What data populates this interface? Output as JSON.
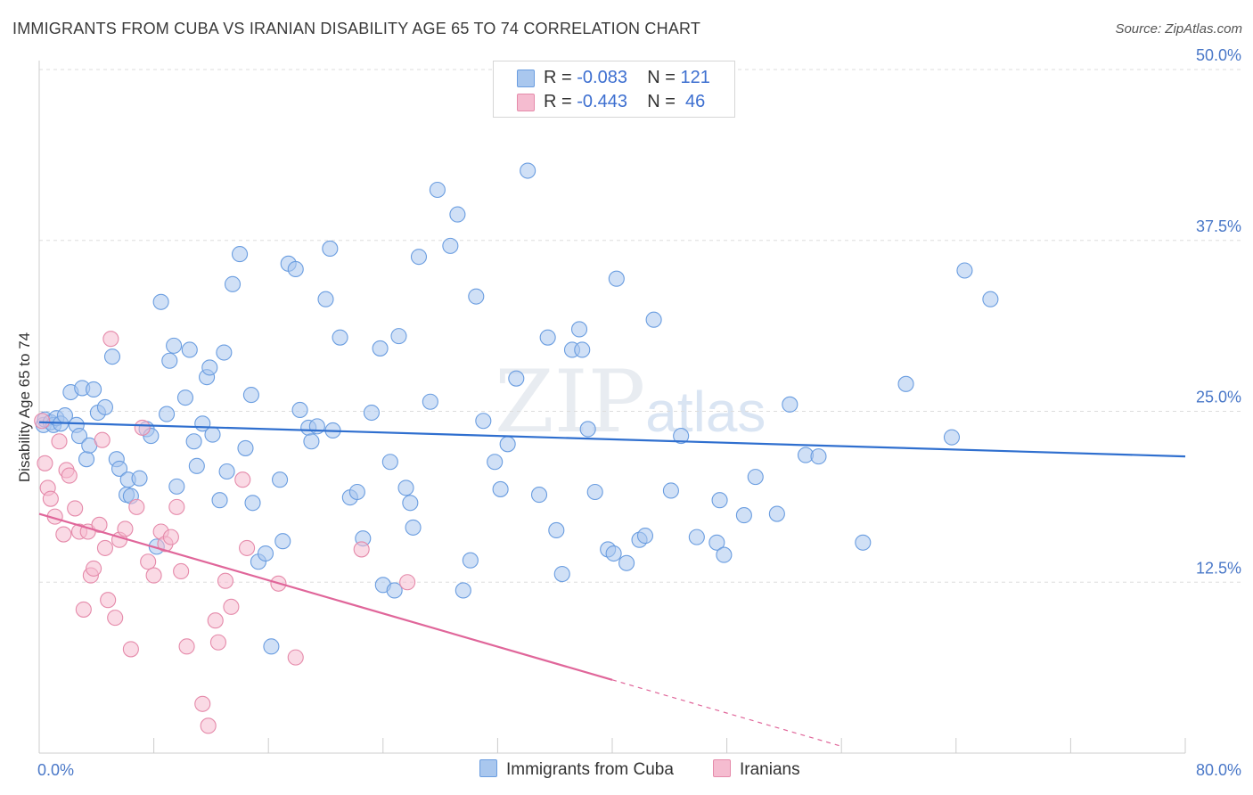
{
  "title": "IMMIGRANTS FROM CUBA VS IRANIAN DISABILITY AGE 65 TO 74 CORRELATION CHART",
  "source": "Source: ZipAtlas.com",
  "watermark": {
    "zip": "ZIP",
    "atlas": "atlas"
  },
  "colors": {
    "blue_fill": "#a9c7ee",
    "blue_stroke": "#6a9de0",
    "blue_line": "#2f6fcf",
    "pink_fill": "#f5bcd0",
    "pink_stroke": "#e58aaa",
    "pink_line": "#e0669a",
    "grid": "#dddddd",
    "tick_text": "#4a78c8"
  },
  "legend": {
    "rows": [
      {
        "r_label": "R =",
        "r_value": "-0.083",
        "n_label": "N =",
        "n_value": "121"
      },
      {
        "r_label": "R =",
        "r_value": "-0.443",
        "n_label": "N =",
        "n_value": "46"
      }
    ]
  },
  "bottom_legend": {
    "series1": "Immigrants from Cuba",
    "series2": "Iranians"
  },
  "chart_data": {
    "type": "scatter",
    "title": "IMMIGRANTS FROM CUBA VS IRANIAN DISABILITY AGE 65 TO 74 CORRELATION CHART",
    "xlabel": "",
    "ylabel": "Disability Age 65 to 74",
    "xlim": [
      0,
      80
    ],
    "ylim": [
      0,
      50
    ],
    "x_tick_labels": [
      "0.0%",
      "80.0%"
    ],
    "y_ticks": [
      12.5,
      25.0,
      37.5,
      50.0
    ],
    "y_tick_labels": [
      "12.5%",
      "25.0%",
      "37.5%",
      "50.0%"
    ],
    "grid": true,
    "series": [
      {
        "name": "Immigrants from Cuba",
        "r": -0.083,
        "n": 121,
        "trend": {
          "x": [
            0,
            80
          ],
          "y": [
            24.2,
            21.7
          ],
          "dashed_from": null
        },
        "points": [
          [
            0.3,
            24.0
          ],
          [
            0.4,
            24.4
          ],
          [
            0.8,
            24.2
          ],
          [
            1.0,
            24.0
          ],
          [
            1.2,
            24.5
          ],
          [
            1.5,
            24.1
          ],
          [
            1.8,
            24.7
          ],
          [
            2.2,
            26.4
          ],
          [
            2.6,
            24.0
          ],
          [
            2.8,
            23.2
          ],
          [
            3.0,
            26.7
          ],
          [
            3.3,
            21.5
          ],
          [
            3.5,
            22.5
          ],
          [
            3.8,
            26.6
          ],
          [
            4.1,
            24.9
          ],
          [
            4.6,
            25.3
          ],
          [
            5.1,
            29.0
          ],
          [
            5.4,
            21.5
          ],
          [
            5.6,
            20.8
          ],
          [
            6.1,
            18.9
          ],
          [
            6.4,
            18.8
          ],
          [
            6.2,
            20.0
          ],
          [
            7.0,
            20.1
          ],
          [
            7.5,
            23.7
          ],
          [
            7.8,
            23.2
          ],
          [
            8.2,
            15.1
          ],
          [
            8.5,
            33.0
          ],
          [
            8.9,
            24.8
          ],
          [
            9.1,
            28.7
          ],
          [
            9.4,
            29.8
          ],
          [
            9.6,
            19.5
          ],
          [
            10.2,
            26.0
          ],
          [
            10.5,
            29.5
          ],
          [
            10.8,
            22.8
          ],
          [
            11.0,
            21.0
          ],
          [
            11.4,
            24.1
          ],
          [
            11.7,
            27.5
          ],
          [
            11.9,
            28.2
          ],
          [
            12.1,
            23.3
          ],
          [
            12.6,
            18.5
          ],
          [
            12.9,
            29.3
          ],
          [
            13.1,
            20.6
          ],
          [
            13.5,
            34.3
          ],
          [
            14.0,
            36.5
          ],
          [
            14.4,
            22.3
          ],
          [
            14.8,
            26.2
          ],
          [
            14.9,
            18.3
          ],
          [
            15.3,
            14.0
          ],
          [
            15.8,
            14.6
          ],
          [
            16.2,
            7.8
          ],
          [
            16.8,
            20.0
          ],
          [
            17.0,
            15.5
          ],
          [
            17.4,
            35.8
          ],
          [
            17.9,
            35.4
          ],
          [
            18.2,
            25.1
          ],
          [
            18.8,
            23.8
          ],
          [
            19.0,
            22.8
          ],
          [
            19.4,
            23.9
          ],
          [
            20.0,
            33.2
          ],
          [
            20.3,
            36.9
          ],
          [
            20.5,
            23.6
          ],
          [
            21.0,
            30.4
          ],
          [
            21.7,
            18.7
          ],
          [
            22.2,
            19.1
          ],
          [
            22.6,
            15.7
          ],
          [
            23.2,
            24.9
          ],
          [
            23.8,
            29.6
          ],
          [
            24.0,
            12.3
          ],
          [
            24.5,
            21.3
          ],
          [
            24.8,
            11.9
          ],
          [
            25.1,
            30.5
          ],
          [
            25.6,
            19.4
          ],
          [
            25.9,
            18.3
          ],
          [
            26.1,
            16.5
          ],
          [
            26.5,
            36.3
          ],
          [
            27.3,
            25.7
          ],
          [
            27.8,
            41.2
          ],
          [
            28.7,
            37.1
          ],
          [
            29.2,
            39.4
          ],
          [
            29.6,
            11.9
          ],
          [
            30.1,
            14.1
          ],
          [
            30.5,
            33.4
          ],
          [
            31.0,
            24.3
          ],
          [
            31.8,
            21.3
          ],
          [
            32.2,
            19.3
          ],
          [
            32.7,
            22.6
          ],
          [
            33.3,
            27.4
          ],
          [
            34.1,
            42.6
          ],
          [
            34.9,
            18.9
          ],
          [
            35.5,
            30.4
          ],
          [
            36.1,
            16.3
          ],
          [
            36.5,
            13.1
          ],
          [
            37.2,
            29.5
          ],
          [
            37.7,
            31.0
          ],
          [
            37.9,
            29.5
          ],
          [
            38.3,
            23.7
          ],
          [
            38.8,
            19.1
          ],
          [
            39.7,
            14.9
          ],
          [
            40.1,
            14.6
          ],
          [
            40.3,
            34.7
          ],
          [
            41.0,
            13.9
          ],
          [
            41.9,
            15.6
          ],
          [
            42.3,
            15.9
          ],
          [
            42.9,
            31.7
          ],
          [
            44.1,
            19.2
          ],
          [
            44.8,
            23.2
          ],
          [
            45.9,
            15.8
          ],
          [
            47.3,
            15.4
          ],
          [
            47.5,
            18.5
          ],
          [
            47.8,
            14.5
          ],
          [
            49.2,
            17.4
          ],
          [
            50.0,
            20.2
          ],
          [
            51.5,
            17.5
          ],
          [
            52.4,
            25.5
          ],
          [
            53.5,
            21.8
          ],
          [
            54.4,
            21.7
          ],
          [
            57.5,
            15.4
          ],
          [
            60.5,
            27.0
          ],
          [
            63.7,
            23.1
          ],
          [
            64.6,
            35.3
          ],
          [
            66.4,
            33.2
          ]
        ]
      },
      {
        "name": "Iranians",
        "r": -0.443,
        "n": 46,
        "trend": {
          "x": [
            0,
            56
          ],
          "y": [
            17.5,
            0.5
          ],
          "dashed_from": 40
        },
        "points": [
          [
            0.2,
            24.3
          ],
          [
            0.4,
            21.2
          ],
          [
            0.6,
            19.4
          ],
          [
            0.8,
            18.6
          ],
          [
            1.1,
            17.3
          ],
          [
            1.4,
            22.8
          ],
          [
            1.7,
            16.0
          ],
          [
            1.9,
            20.7
          ],
          [
            2.1,
            20.3
          ],
          [
            2.5,
            17.9
          ],
          [
            2.8,
            16.2
          ],
          [
            3.1,
            10.5
          ],
          [
            3.4,
            16.2
          ],
          [
            3.6,
            13.0
          ],
          [
            3.8,
            13.5
          ],
          [
            4.2,
            16.7
          ],
          [
            4.4,
            22.9
          ],
          [
            4.6,
            15.0
          ],
          [
            4.8,
            11.2
          ],
          [
            5.0,
            30.3
          ],
          [
            5.3,
            9.9
          ],
          [
            5.6,
            15.6
          ],
          [
            6.0,
            16.4
          ],
          [
            6.4,
            7.6
          ],
          [
            6.8,
            18.0
          ],
          [
            7.2,
            23.8
          ],
          [
            7.6,
            14.0
          ],
          [
            8.0,
            13.0
          ],
          [
            8.5,
            16.2
          ],
          [
            8.8,
            15.3
          ],
          [
            9.2,
            15.8
          ],
          [
            9.6,
            18.0
          ],
          [
            9.9,
            13.3
          ],
          [
            10.3,
            7.8
          ],
          [
            11.4,
            3.6
          ],
          [
            11.8,
            2.0
          ],
          [
            12.3,
            9.7
          ],
          [
            12.5,
            8.1
          ],
          [
            13.0,
            12.6
          ],
          [
            13.4,
            10.7
          ],
          [
            14.2,
            20.0
          ],
          [
            14.5,
            15.0
          ],
          [
            16.7,
            12.4
          ],
          [
            17.9,
            7.0
          ],
          [
            22.5,
            14.9
          ],
          [
            25.7,
            12.5
          ]
        ]
      }
    ]
  }
}
